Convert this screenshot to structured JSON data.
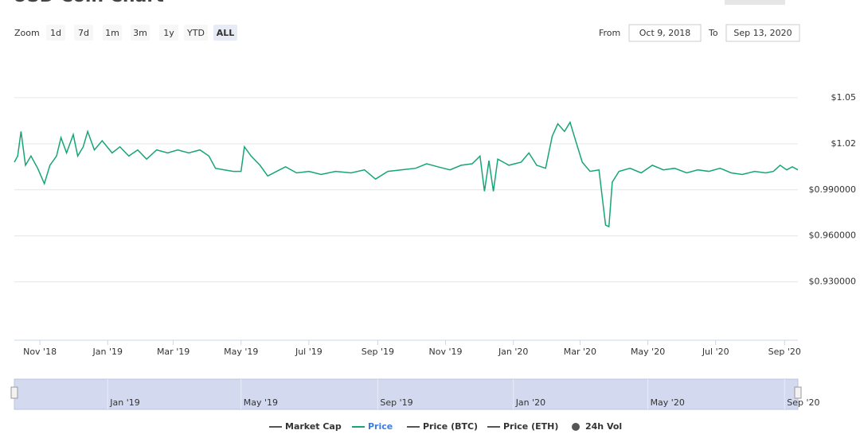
{
  "chart_data": {
    "type": "line",
    "title": "USD Coin Chart",
    "zoom": {
      "label": "Zoom",
      "buttons": [
        "1d",
        "7d",
        "1m",
        "3m",
        "1y",
        "YTD",
        "ALL"
      ],
      "active": "ALL"
    },
    "range": {
      "from_label": "From",
      "from": "Oct 9, 2018",
      "to_label": "To",
      "to": "Sep 13, 2020"
    },
    "x": [
      "2018-10-09",
      "2018-10-12",
      "2018-10-15",
      "2018-10-19",
      "2018-10-24",
      "2018-10-30",
      "2018-11-05",
      "2018-11-10",
      "2018-11-16",
      "2018-11-20",
      "2018-11-25",
      "2018-12-01",
      "2018-12-05",
      "2018-12-10",
      "2018-12-14",
      "2018-12-20",
      "2018-12-27",
      "2019-01-05",
      "2019-01-12",
      "2019-01-20",
      "2019-01-28",
      "2019-02-05",
      "2019-02-14",
      "2019-02-24",
      "2019-03-05",
      "2019-03-15",
      "2019-03-25",
      "2019-04-02",
      "2019-04-08",
      "2019-04-16",
      "2019-04-24",
      "2019-05-01",
      "2019-05-04",
      "2019-05-10",
      "2019-05-18",
      "2019-05-25",
      "2019-06-02",
      "2019-06-10",
      "2019-06-20",
      "2019-07-01",
      "2019-07-12",
      "2019-07-25",
      "2019-08-08",
      "2019-08-20",
      "2019-08-30",
      "2019-09-10",
      "2019-09-22",
      "2019-10-05",
      "2019-10-15",
      "2019-10-25",
      "2019-11-05",
      "2019-11-15",
      "2019-11-25",
      "2019-12-02",
      "2019-12-06",
      "2019-12-10",
      "2019-12-14",
      "2019-12-18",
      "2019-12-28",
      "2020-01-08",
      "2020-01-15",
      "2020-01-22",
      "2020-01-30",
      "2020-02-05",
      "2020-02-10",
      "2020-02-16",
      "2020-02-21",
      "2020-02-26",
      "2020-03-03",
      "2020-03-10",
      "2020-03-18",
      "2020-03-24",
      "2020-03-27",
      "2020-03-30",
      "2020-04-05",
      "2020-04-15",
      "2020-04-25",
      "2020-05-05",
      "2020-05-15",
      "2020-05-25",
      "2020-06-05",
      "2020-06-15",
      "2020-06-25",
      "2020-07-05",
      "2020-07-15",
      "2020-07-25",
      "2020-08-05",
      "2020-08-15",
      "2020-08-22",
      "2020-08-28",
      "2020-09-03",
      "2020-09-08",
      "2020-09-13"
    ],
    "series": [
      {
        "name": "Price",
        "color": "#17a673",
        "values": [
          1.008,
          1.012,
          1.028,
          1.006,
          1.012,
          1.004,
          0.994,
          1.006,
          1.012,
          1.024,
          1.014,
          1.026,
          1.012,
          1.018,
          1.028,
          1.016,
          1.022,
          1.014,
          1.018,
          1.012,
          1.016,
          1.01,
          1.016,
          1.014,
          1.016,
          1.014,
          1.016,
          1.012,
          1.004,
          1.003,
          1.002,
          1.002,
          1.018,
          1.012,
          1.006,
          0.999,
          1.002,
          1.005,
          1.001,
          1.002,
          1.0,
          1.002,
          1.001,
          1.003,
          0.997,
          1.002,
          1.003,
          1.004,
          1.007,
          1.005,
          1.003,
          1.006,
          1.007,
          1.012,
          0.989,
          1.009,
          0.989,
          1.01,
          1.006,
          1.008,
          1.014,
          1.006,
          1.004,
          1.025,
          1.033,
          1.028,
          1.034,
          1.022,
          1.008,
          1.002,
          1.003,
          0.967,
          0.966,
          0.995,
          1.002,
          1.004,
          1.001,
          1.006,
          1.003,
          1.004,
          1.001,
          1.003,
          1.002,
          1.004,
          1.001,
          1.0,
          1.002,
          1.001,
          1.002,
          1.006,
          1.003,
          1.005,
          1.003
        ]
      }
    ],
    "xlim": [
      "2018-10-09",
      "2020-09-13"
    ],
    "xticks": [
      {
        "value": "2018-11-01",
        "label": "Nov '18"
      },
      {
        "value": "2019-01-01",
        "label": "Jan '19"
      },
      {
        "value": "2019-03-01",
        "label": "Mar '19"
      },
      {
        "value": "2019-05-01",
        "label": "May '19"
      },
      {
        "value": "2019-07-01",
        "label": "Jul '19"
      },
      {
        "value": "2019-09-01",
        "label": "Sep '19"
      },
      {
        "value": "2019-11-01",
        "label": "Nov '19"
      },
      {
        "value": "2020-01-01",
        "label": "Jan '20"
      },
      {
        "value": "2020-03-01",
        "label": "Mar '20"
      },
      {
        "value": "2020-05-01",
        "label": "May '20"
      },
      {
        "value": "2020-07-01",
        "label": "Jul '20"
      },
      {
        "value": "2020-09-01",
        "label": "Sep '20"
      }
    ],
    "ylim": [
      0.892,
      1.08
    ],
    "yticks": [
      {
        "value": 1.05,
        "label": "$1.05"
      },
      {
        "value": 1.02,
        "label": "$1.02"
      },
      {
        "value": 0.99,
        "label": "$0.990000"
      },
      {
        "value": 0.96,
        "label": "$0.960000"
      },
      {
        "value": 0.93,
        "label": "$0.930000"
      }
    ],
    "grid": true,
    "navigator_ticks": [
      {
        "value": "2019-01-01",
        "label": "Jan '19"
      },
      {
        "value": "2019-05-01",
        "label": "May '19"
      },
      {
        "value": "2019-09-01",
        "label": "Sep '19"
      },
      {
        "value": "2020-01-01",
        "label": "Jan '20"
      },
      {
        "value": "2020-05-01",
        "label": "May '20"
      },
      {
        "value": "2020-09-01",
        "label": "Sep '20"
      }
    ],
    "legend": [
      {
        "name": "Market Cap",
        "color": "#555555",
        "marker": "line"
      },
      {
        "name": "Price",
        "color": "#17a673",
        "marker": "line"
      },
      {
        "name": "Price (BTC)",
        "color": "#555555",
        "marker": "line"
      },
      {
        "name": "Price (ETH)",
        "color": "#555555",
        "marker": "line"
      },
      {
        "name": "24h Vol",
        "color": "#555555",
        "marker": "circle"
      }
    ]
  }
}
